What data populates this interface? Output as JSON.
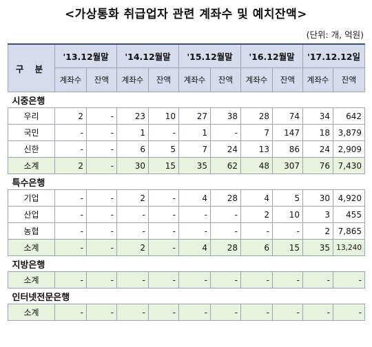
{
  "title": "<가상통화 취급업자 관련 계좌수 및 예치잔액>",
  "unit": "(단위: 개, 억원)",
  "header": {
    "gubun": "구 분",
    "periods": [
      "'13.12월말",
      "'14.12월말",
      "'15.12월말",
      "'16.12월말",
      "'17.12.12일"
    ],
    "sub": [
      "계좌수",
      "잔액"
    ]
  },
  "sections": [
    {
      "name": "시중은행",
      "rows": [
        {
          "name": "우리",
          "cells": [
            "2",
            "-",
            "23",
            "10",
            "27",
            "38",
            "28",
            "74",
            "34",
            "642"
          ]
        },
        {
          "name": "국민",
          "cells": [
            "-",
            "-",
            "1",
            "-",
            "1",
            "-",
            "7",
            "147",
            "18",
            "3,879"
          ]
        },
        {
          "name": "신한",
          "cells": [
            "-",
            "-",
            "6",
            "5",
            "7",
            "24",
            "13",
            "86",
            "24",
            "2,909"
          ]
        },
        {
          "name": "소계",
          "cells": [
            "2",
            "-",
            "30",
            "15",
            "35",
            "62",
            "48",
            "307",
            "76",
            "7,430"
          ]
        }
      ]
    },
    {
      "name": "특수은행",
      "rows": [
        {
          "name": "기업",
          "cells": [
            "-",
            "-",
            "2",
            "-",
            "4",
            "28",
            "4",
            "5",
            "30",
            "4,920"
          ]
        },
        {
          "name": "산업",
          "cells": [
            "-",
            "-",
            "-",
            "-",
            "-",
            "-",
            "2",
            "10",
            "3",
            "455"
          ]
        },
        {
          "name": "농협",
          "cells": [
            "-",
            "-",
            "-",
            "-",
            "-",
            "-",
            "-",
            "-",
            "2",
            "7,865"
          ]
        },
        {
          "name": "소계",
          "cells": [
            "-",
            "-",
            "2",
            "-",
            "4",
            "28",
            "6",
            "15",
            "35",
            "13,240"
          ]
        }
      ]
    },
    {
      "name": "지방은행",
      "rows": [
        {
          "name": "소계",
          "cells": [
            "-",
            "-",
            "-",
            "-",
            "-",
            "-",
            "-",
            "-",
            "-",
            "-"
          ]
        }
      ]
    },
    {
      "name": "인터넷전문은행",
      "rows": [
        {
          "name": "소계",
          "cells": [
            "-",
            "-",
            "-",
            "-",
            "-",
            "-",
            "-",
            "-",
            "-",
            "-"
          ]
        }
      ]
    }
  ]
}
